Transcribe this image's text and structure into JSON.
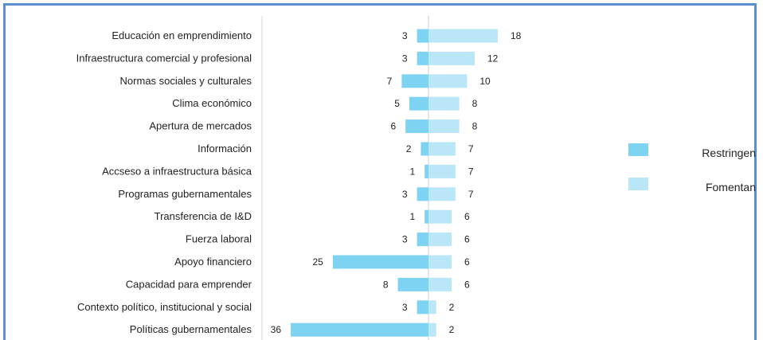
{
  "chart_data": {
    "type": "bar",
    "orientation": "horizontal-diverging",
    "categories": [
      "Educación en emprendimiento",
      "Infraestructura comercial y profesional",
      "Normas sociales y culturales",
      "Clima económico",
      "Apertura de mercados",
      "Información",
      "Accseso a infraestructura básica",
      "Programas gubernamentales",
      "Transferencia de I&D",
      "Fuerza laboral",
      "Apoyo financiero",
      "Capacidad para emprender",
      "Contexto político, institucional y social",
      "Políticas gubernamentales"
    ],
    "series": [
      {
        "name": "Restringen",
        "color": "#7fd3f2",
        "direction": "left",
        "values": [
          3,
          3,
          7,
          5,
          6,
          2,
          1,
          3,
          1,
          3,
          25,
          8,
          3,
          36
        ]
      },
      {
        "name": "Fomentan",
        "color": "#b9e7f8",
        "direction": "right",
        "values": [
          18,
          12,
          10,
          8,
          8,
          7,
          7,
          7,
          6,
          6,
          6,
          6,
          2,
          2
        ]
      }
    ],
    "title": "",
    "xlabel": "",
    "ylabel": "",
    "legend_position": "right",
    "grid": false
  }
}
